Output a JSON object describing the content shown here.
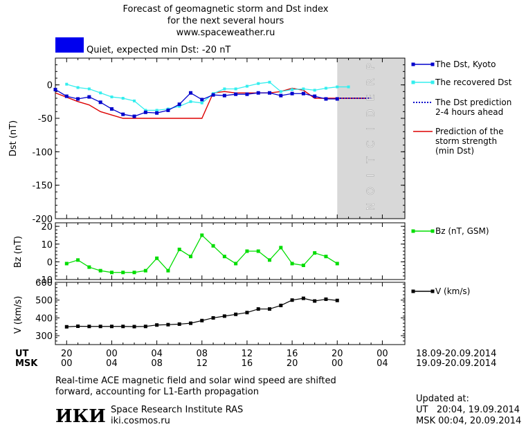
{
  "header": {
    "title_line1": "Forecast of geomagnetic storm and Dst index",
    "title_line2": "for the next several hours",
    "site": "www.spaceweather.ru",
    "status_color": "#0000ee",
    "status_text": "Quiet, expected min Dst: -20 nT"
  },
  "prediction_label": "PREDICTION",
  "time_axis": {
    "ut_label": "UT",
    "msk_label": "MSK",
    "ut_ticks": [
      "20",
      "00",
      "04",
      "08",
      "12",
      "16",
      "20",
      "00"
    ],
    "msk_ticks": [
      "00",
      "04",
      "08",
      "12",
      "16",
      "20",
      "00",
      "04"
    ],
    "ut_date_range": "18.09-20.09.2014",
    "msk_date_range": "19.09-20.09.2014"
  },
  "footer": {
    "note_line1": "Real-time ACE magnetic field and solar wind speed are shifted",
    "note_line2": "forward, accounting for L1-Earth propagation",
    "institute_logo": "ИКИ",
    "institute_name": "Space Research Institute RAS",
    "institute_site": "iki.cosmos.ru",
    "updated_label": "Updated at:",
    "updated_ut": "UT   20:04, 19.09.2014",
    "updated_msk": "MSK 00:04, 20.09.2014"
  },
  "colors": {
    "dst_kyoto": "#0000cc",
    "dst_recovered": "#33eeee",
    "dst_prediction": "#0000cc",
    "storm_strength": "#dd0000",
    "bz": "#00dd00",
    "speed": "#000000",
    "prediction_band": "#d8d8d8"
  },
  "chart_data": [
    {
      "type": "line",
      "ylabel": "Dst (nT)",
      "ylim": [
        -200,
        40
      ],
      "yticks": [
        0,
        -50,
        -100,
        -150,
        -200
      ],
      "xlim": [
        -1,
        30
      ],
      "x_unit": "hours after 20 UT 18.09.2014",
      "prediction_start": 24,
      "legend_placement": "right",
      "series": [
        {
          "name": "The Dst, Kyoto",
          "x": [
            -1,
            0,
            1,
            2,
            3,
            4,
            5,
            6,
            7,
            8,
            9,
            10,
            11,
            12,
            13,
            14,
            15,
            16,
            17,
            18,
            19,
            20,
            21,
            22,
            23,
            24
          ],
          "y": [
            -7,
            -17,
            -21,
            -18,
            -26,
            -36,
            -44,
            -47,
            -41,
            -42,
            -38,
            -29,
            -12,
            -22,
            -15,
            -16,
            -14,
            -14,
            -12,
            -12,
            -16,
            -13,
            -13,
            -17,
            -21,
            -21
          ]
        },
        {
          "name": "The recovered Dst",
          "x": [
            0,
            1,
            2,
            3,
            4,
            5,
            6,
            7,
            8,
            9,
            10,
            11,
            12,
            13,
            14,
            15,
            16,
            17,
            18,
            19,
            20,
            21,
            22,
            23,
            24,
            25
          ],
          "y": [
            1,
            -4,
            -6,
            -12,
            -18,
            -20,
            -24,
            -38,
            -38,
            -36,
            -32,
            -25,
            -27,
            -13,
            -6,
            -6,
            -2,
            2,
            4,
            -10,
            -7,
            -6,
            -8,
            -5,
            -3,
            -3
          ]
        },
        {
          "name": "The Dst prediction",
          "legend_line2": "2-4 hours ahead",
          "x": [
            24,
            25,
            26,
            27
          ],
          "y": [
            -20,
            -20,
            -20,
            -20
          ]
        },
        {
          "name": "Prediction of the",
          "legend_line2": "storm strength",
          "legend_line3": "(min Dst)",
          "x": [
            -1,
            1,
            2,
            3,
            4,
            5,
            6,
            7,
            8,
            9,
            10,
            11,
            12,
            13,
            14,
            15,
            16,
            17,
            18,
            19,
            20,
            21,
            22,
            23,
            24,
            27
          ],
          "y": [
            -12,
            -25,
            -30,
            -40,
            -45,
            -50,
            -50,
            -50,
            -50,
            -50,
            -50,
            -50,
            -50,
            -12,
            -10,
            -12,
            -12,
            -12,
            -12,
            -10,
            -5,
            -8,
            -20,
            -20,
            -20,
            -20
          ]
        }
      ]
    },
    {
      "type": "line",
      "ylabel": "Bz (nT)",
      "ylim": [
        -10,
        22
      ],
      "yticks": [
        20,
        10,
        0,
        -10
      ],
      "series": [
        {
          "name": "Bz (nT, GSM)",
          "x": [
            0,
            1,
            2,
            3,
            4,
            5,
            6,
            7,
            8,
            9,
            10,
            11,
            12,
            13,
            14,
            15,
            16,
            17,
            18,
            19,
            20,
            21,
            22,
            23,
            24
          ],
          "y": [
            -1,
            1,
            -3,
            -5,
            -6,
            -6,
            -6,
            -5,
            2,
            -5,
            7,
            3,
            15,
            9,
            3,
            -1,
            6,
            6,
            1,
            8,
            -1,
            -2,
            5,
            3,
            -1
          ]
        }
      ]
    },
    {
      "type": "line",
      "ylabel": "V (km/s)",
      "ylim": [
        250,
        600
      ],
      "yticks": [
        600,
        500,
        400,
        300
      ],
      "series": [
        {
          "name": "V (km/s)",
          "x": [
            0,
            1,
            2,
            3,
            4,
            5,
            6,
            7,
            8,
            9,
            10,
            11,
            12,
            13,
            14,
            15,
            16,
            17,
            18,
            19,
            20,
            21,
            22,
            23,
            24
          ],
          "y": [
            350,
            353,
            352,
            352,
            352,
            352,
            351,
            352,
            360,
            362,
            365,
            370,
            385,
            400,
            410,
            420,
            430,
            450,
            450,
            470,
            500,
            510,
            495,
            505,
            498
          ]
        }
      ]
    }
  ]
}
